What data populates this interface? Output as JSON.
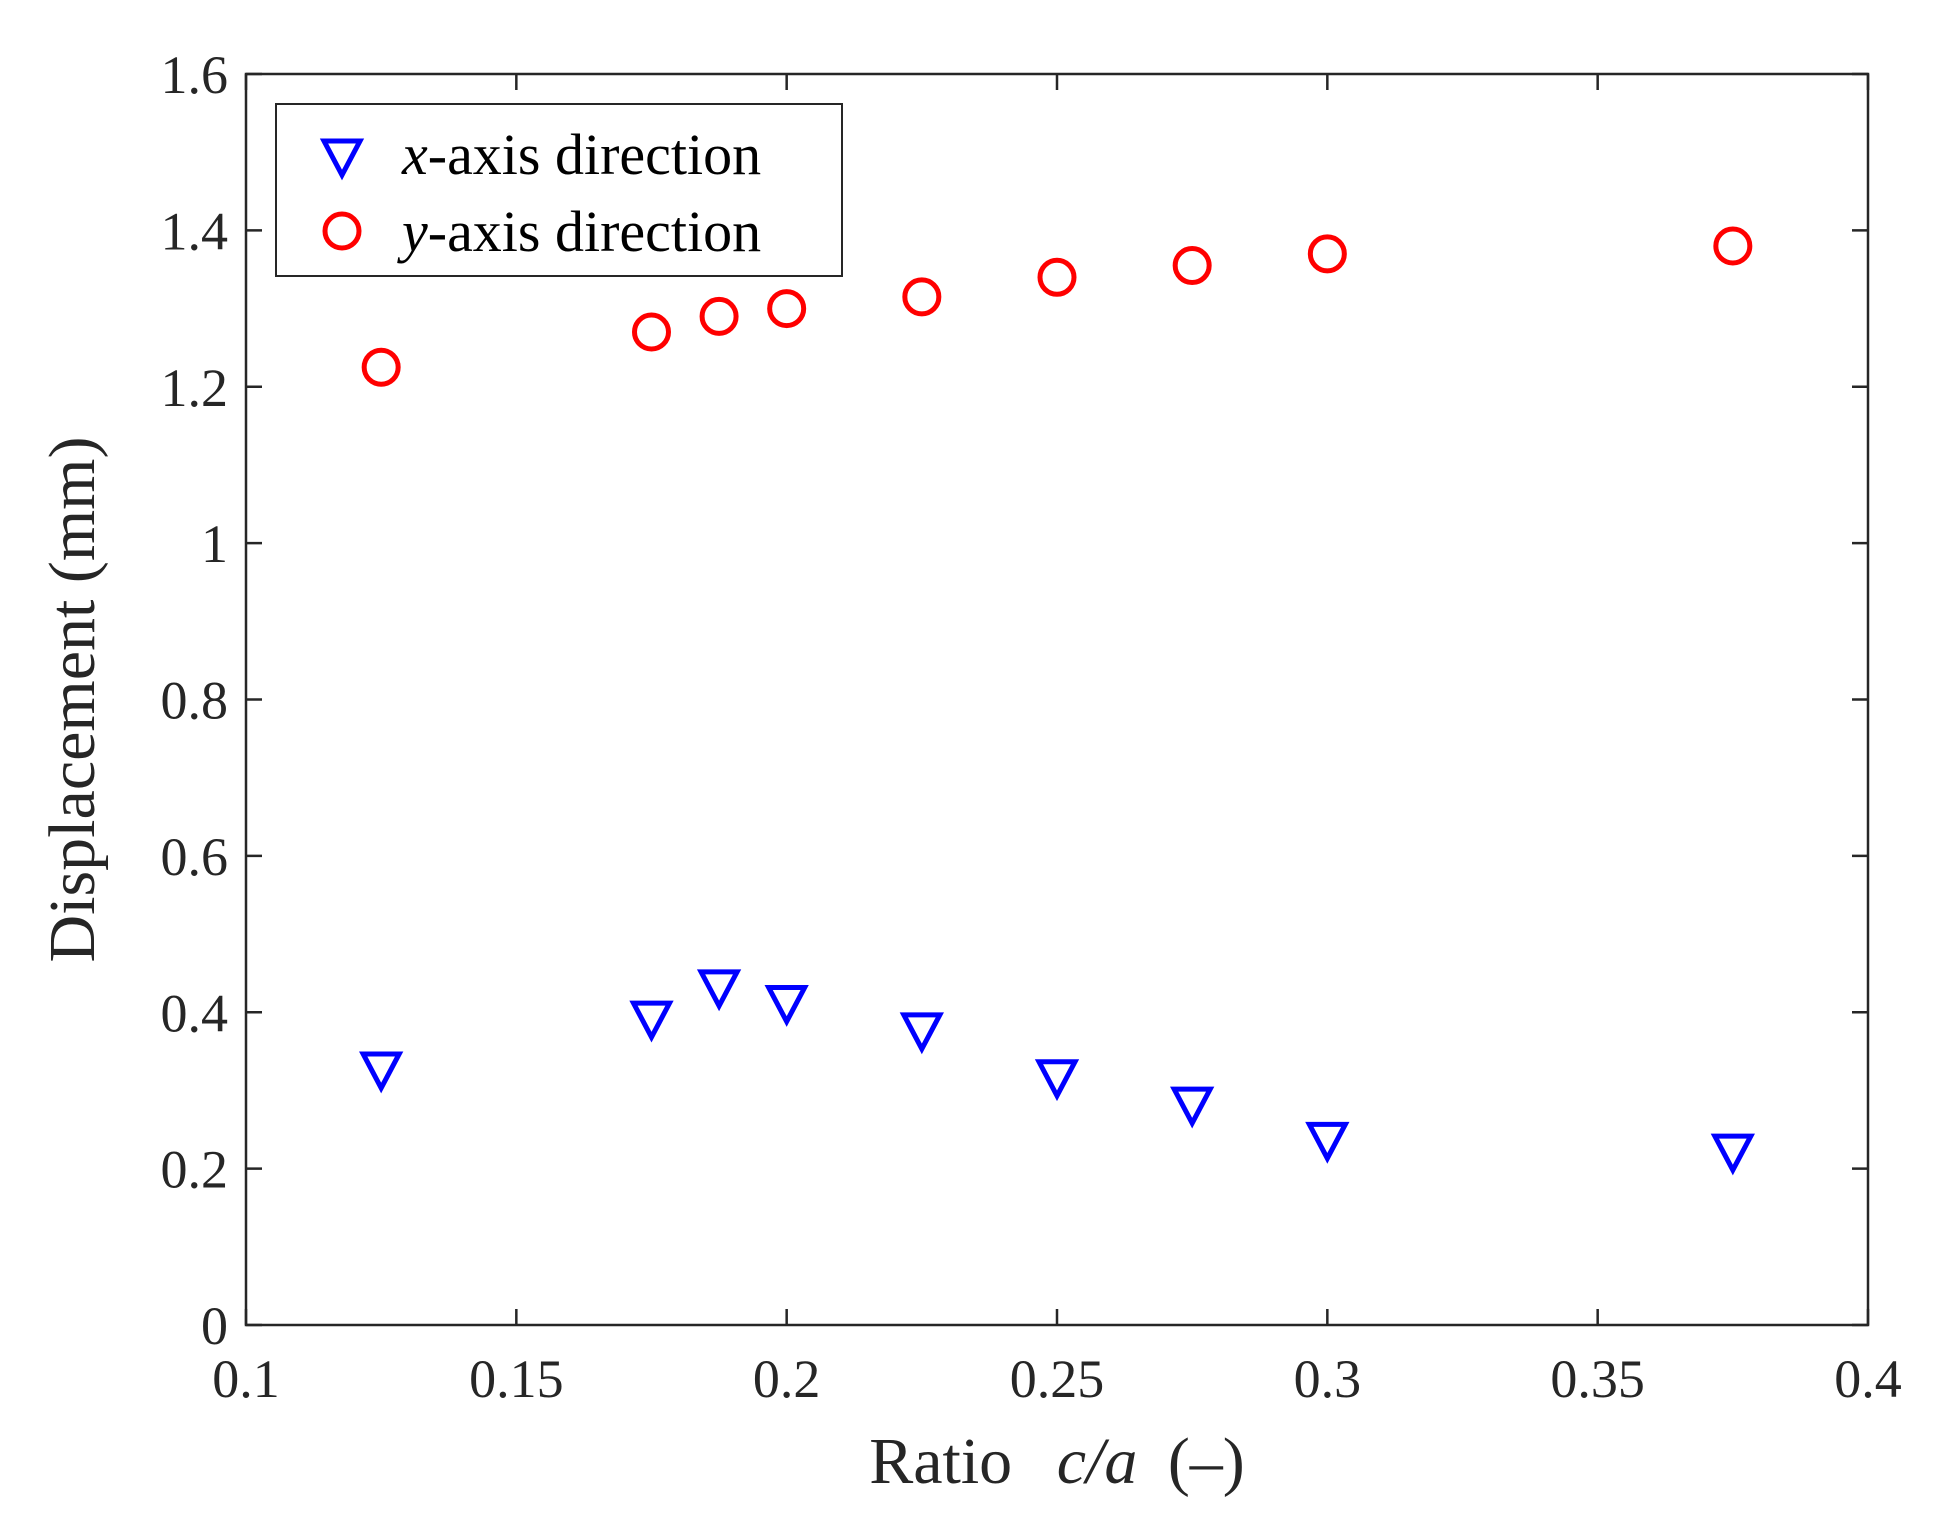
{
  "chart_data": {
    "type": "scatter",
    "title": "",
    "xlabel": {
      "prefix": "Ratio",
      "var": "c/a",
      "unit": "(–)"
    },
    "ylabel": "Displacement (mm)",
    "xlim": [
      0.1,
      0.4
    ],
    "ylim": [
      0,
      1.6
    ],
    "xticks": [
      0.1,
      0.15,
      0.2,
      0.25,
      0.3,
      0.35,
      0.4
    ],
    "xtick_labels": [
      "0.1",
      "0.15",
      "0.2",
      "0.25",
      "0.3",
      "0.35",
      "0.4"
    ],
    "yticks": [
      0,
      0.2,
      0.4,
      0.6,
      0.8,
      1.0,
      1.2,
      1.4,
      1.6
    ],
    "ytick_labels": [
      "0",
      "0.2",
      "0.4",
      "0.6",
      "0.8",
      "1",
      "1.2",
      "1.4",
      "1.6"
    ],
    "grid": false,
    "legend_position": "top-left",
    "series": [
      {
        "name": "x-axis direction",
        "legend_var": "x",
        "legend_rest": "-axis direction",
        "marker": "triangle-down",
        "color": "#0000ff",
        "x": [
          0.125,
          0.175,
          0.1875,
          0.2,
          0.225,
          0.25,
          0.275,
          0.3,
          0.375
        ],
        "y": [
          0.33,
          0.395,
          0.435,
          0.415,
          0.38,
          0.32,
          0.285,
          0.24,
          0.225
        ]
      },
      {
        "name": "y-axis direction",
        "legend_var": "y",
        "legend_rest": "-axis direction",
        "marker": "circle",
        "color": "#ff0000",
        "x": [
          0.125,
          0.175,
          0.1875,
          0.2,
          0.225,
          0.25,
          0.275,
          0.3,
          0.375
        ],
        "y": [
          1.225,
          1.27,
          1.29,
          1.3,
          1.315,
          1.34,
          1.355,
          1.37,
          1.38
        ]
      }
    ]
  }
}
